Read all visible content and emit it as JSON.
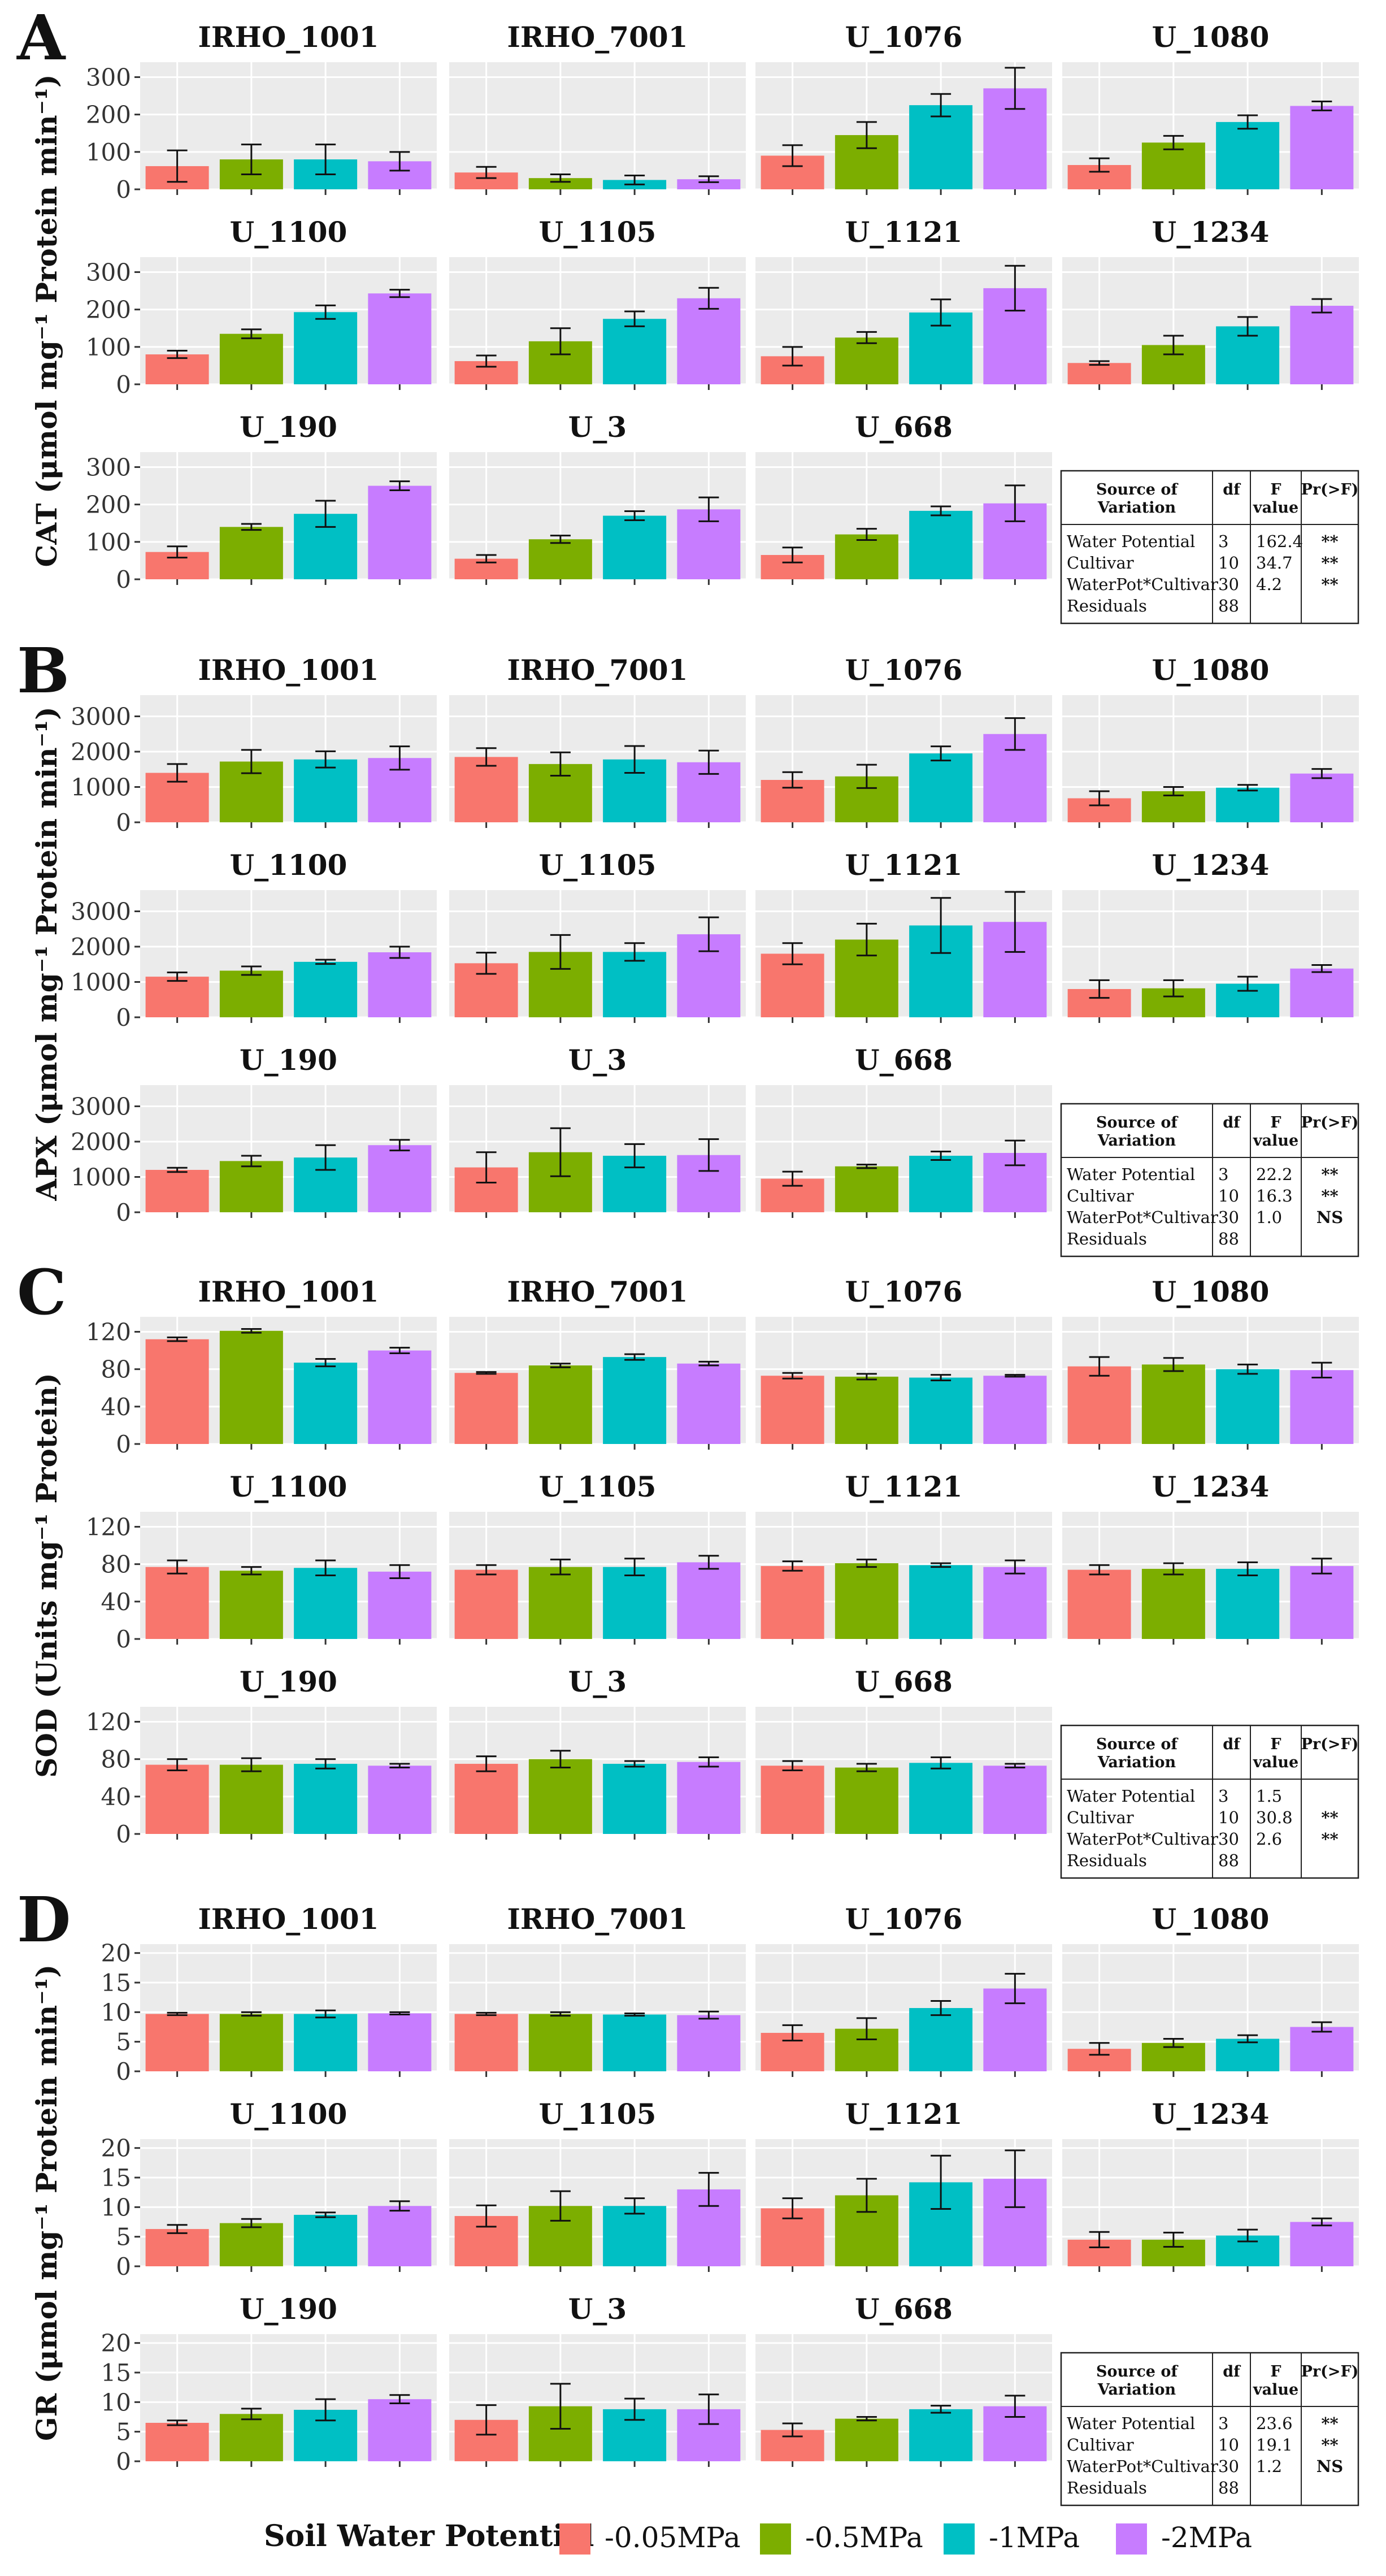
{
  "figure": {
    "legend": {
      "title": "Soil Water Potential",
      "items": [
        "-0.05MPa",
        "-0.5MPa",
        "-1MPa",
        "-2MPa"
      ],
      "colors": [
        "#f8766d",
        "#7cae00",
        "#00bfc4",
        "#c77cff"
      ]
    },
    "table_headers": [
      "Source of Variation",
      "df",
      "F value",
      "Pr(>F)"
    ]
  },
  "chart_data": [
    {
      "type": "bar",
      "panel_letter": "A",
      "ylabel": "CAT (μmol mg⁻¹ Protein min⁻¹)",
      "ylim": [
        0,
        340
      ],
      "yticks": [
        0,
        100,
        200,
        300
      ],
      "series_names": [
        "-0.05MPa",
        "-0.5MPa",
        "-1MPa",
        "-2MPa"
      ],
      "facets": [
        {
          "title": "IRHO_1001",
          "values": [
            62,
            80,
            80,
            75
          ],
          "errors": [
            42,
            40,
            40,
            25
          ]
        },
        {
          "title": "IRHO_7001",
          "values": [
            45,
            30,
            25,
            27
          ],
          "errors": [
            15,
            10,
            12,
            8
          ]
        },
        {
          "title": "U_1076",
          "values": [
            90,
            145,
            225,
            270
          ],
          "errors": [
            28,
            35,
            30,
            55
          ]
        },
        {
          "title": "U_1080",
          "values": [
            65,
            125,
            180,
            223
          ],
          "errors": [
            18,
            18,
            18,
            12
          ]
        },
        {
          "title": "U_1100",
          "values": [
            80,
            135,
            193,
            243
          ],
          "errors": [
            10,
            12,
            18,
            10
          ]
        },
        {
          "title": "U_1105",
          "values": [
            62,
            115,
            175,
            230
          ],
          "errors": [
            15,
            35,
            20,
            28
          ]
        },
        {
          "title": "U_1121",
          "values": [
            75,
            125,
            192,
            257
          ],
          "errors": [
            25,
            15,
            35,
            60
          ]
        },
        {
          "title": "U_1234",
          "values": [
            57,
            105,
            155,
            210
          ],
          "errors": [
            5,
            25,
            25,
            18
          ]
        },
        {
          "title": "U_190",
          "values": [
            73,
            140,
            175,
            250
          ],
          "errors": [
            15,
            8,
            35,
            12
          ]
        },
        {
          "title": "U_3",
          "values": [
            55,
            107,
            170,
            187
          ],
          "errors": [
            10,
            10,
            12,
            32
          ]
        },
        {
          "title": "U_668",
          "values": [
            65,
            120,
            183,
            203
          ],
          "errors": [
            20,
            15,
            12,
            48
          ]
        }
      ],
      "anova": [
        {
          "source": "Water Potential",
          "df": "3",
          "f": "162.4",
          "p": "**"
        },
        {
          "source": "Cultivar",
          "df": "10",
          "f": "34.7",
          "p": "**"
        },
        {
          "source": "WaterPot*Cultivar",
          "df": "30",
          "f": "4.2",
          "p": "**"
        },
        {
          "source": "Residuals",
          "df": "88",
          "f": "",
          "p": ""
        }
      ]
    },
    {
      "type": "bar",
      "panel_letter": "B",
      "ylabel": "APX (μmol mg⁻¹ Protein min⁻¹)",
      "ylim": [
        0,
        3600
      ],
      "yticks": [
        0,
        1000,
        2000,
        3000
      ],
      "series_names": [
        "-0.05MPa",
        "-0.5MPa",
        "-1MPa",
        "-2MPa"
      ],
      "facets": [
        {
          "title": "IRHO_1001",
          "values": [
            1400,
            1720,
            1780,
            1820
          ],
          "errors": [
            250,
            330,
            230,
            330
          ]
        },
        {
          "title": "IRHO_7001",
          "values": [
            1850,
            1650,
            1780,
            1700
          ],
          "errors": [
            250,
            330,
            380,
            330
          ]
        },
        {
          "title": "U_1076",
          "values": [
            1200,
            1300,
            1950,
            2500
          ],
          "errors": [
            220,
            330,
            200,
            450
          ]
        },
        {
          "title": "U_1080",
          "values": [
            680,
            880,
            980,
            1380
          ],
          "errors": [
            200,
            120,
            80,
            130
          ]
        },
        {
          "title": "U_1100",
          "values": [
            1150,
            1320,
            1570,
            1840
          ],
          "errors": [
            120,
            120,
            60,
            160
          ]
        },
        {
          "title": "U_1105",
          "values": [
            1530,
            1850,
            1850,
            2350
          ],
          "errors": [
            300,
            480,
            250,
            480
          ]
        },
        {
          "title": "U_1121",
          "values": [
            1800,
            2200,
            2600,
            2700
          ],
          "errors": [
            300,
            450,
            780,
            850
          ]
        },
        {
          "title": "U_1234",
          "values": [
            800,
            820,
            950,
            1380
          ],
          "errors": [
            250,
            230,
            200,
            100
          ]
        },
        {
          "title": "U_190",
          "values": [
            1200,
            1450,
            1550,
            1900
          ],
          "errors": [
            60,
            150,
            350,
            150
          ]
        },
        {
          "title": "U_3",
          "values": [
            1270,
            1700,
            1600,
            1620
          ],
          "errors": [
            430,
            680,
            330,
            450
          ]
        },
        {
          "title": "U_668",
          "values": [
            950,
            1300,
            1600,
            1680
          ],
          "errors": [
            200,
            50,
            120,
            350
          ]
        }
      ],
      "anova": [
        {
          "source": "Water Potential",
          "df": "3",
          "f": "22.2",
          "p": "**"
        },
        {
          "source": "Cultivar",
          "df": "10",
          "f": "16.3",
          "p": "**"
        },
        {
          "source": "WaterPot*Cultivar",
          "df": "30",
          "f": "1.0",
          "p": "NS"
        },
        {
          "source": "Residuals",
          "df": "88",
          "f": "",
          "p": ""
        }
      ]
    },
    {
      "type": "bar",
      "panel_letter": "C",
      "ylabel": "SOD (Units mg⁻¹ Protein)",
      "ylim": [
        0,
        136
      ],
      "yticks": [
        0,
        40,
        80,
        120
      ],
      "series_names": [
        "-0.05MPa",
        "-0.5MPa",
        "-1MPa",
        "-2MPa"
      ],
      "facets": [
        {
          "title": "IRHO_1001",
          "values": [
            112,
            121,
            87,
            100
          ],
          "errors": [
            2,
            2,
            4,
            3
          ]
        },
        {
          "title": "IRHO_7001",
          "values": [
            76,
            84,
            93,
            86
          ],
          "errors": [
            1,
            2,
            3,
            2
          ]
        },
        {
          "title": "U_1076",
          "values": [
            73,
            72,
            71,
            73
          ],
          "errors": [
            3,
            3,
            3,
            1
          ]
        },
        {
          "title": "U_1080",
          "values": [
            83,
            85,
            80,
            79
          ],
          "errors": [
            10,
            7,
            5,
            8
          ]
        },
        {
          "title": "U_1100",
          "values": [
            77,
            73,
            76,
            72
          ],
          "errors": [
            7,
            4,
            8,
            7
          ]
        },
        {
          "title": "U_1105",
          "values": [
            74,
            77,
            77,
            82
          ],
          "errors": [
            5,
            8,
            9,
            7
          ]
        },
        {
          "title": "U_1121",
          "values": [
            78,
            81,
            79,
            77
          ],
          "errors": [
            5,
            4,
            2,
            7
          ]
        },
        {
          "title": "U_1234",
          "values": [
            74,
            75,
            75,
            78
          ],
          "errors": [
            5,
            6,
            7,
            8
          ]
        },
        {
          "title": "U_190",
          "values": [
            74,
            74,
            75,
            73
          ],
          "errors": [
            6,
            7,
            5,
            2
          ]
        },
        {
          "title": "U_3",
          "values": [
            75,
            80,
            75,
            77
          ],
          "errors": [
            8,
            9,
            3,
            5
          ]
        },
        {
          "title": "U_668",
          "values": [
            73,
            71,
            76,
            73
          ],
          "errors": [
            5,
            4,
            6,
            2
          ]
        }
      ],
      "anova": [
        {
          "source": "Water Potential",
          "df": "3",
          "f": "1.5",
          "p": ""
        },
        {
          "source": "Cultivar",
          "df": "10",
          "f": "30.8",
          "p": "**"
        },
        {
          "source": "WaterPot*Cultivar",
          "df": "30",
          "f": "2.6",
          "p": "**"
        },
        {
          "source": "Residuals",
          "df": "88",
          "f": "",
          "p": ""
        }
      ]
    },
    {
      "type": "bar",
      "panel_letter": "D",
      "ylabel": "GR (μmol mg⁻¹ Protein min⁻¹)",
      "ylim": [
        0,
        21.5
      ],
      "yticks": [
        0,
        5,
        10,
        15,
        20
      ],
      "series_names": [
        "-0.05MPa",
        "-0.5MPa",
        "-1MPa",
        "-2MPa"
      ],
      "facets": [
        {
          "title": "IRHO_1001",
          "values": [
            9.7,
            9.7,
            9.7,
            9.8
          ],
          "errors": [
            0.2,
            0.3,
            0.6,
            0.2
          ]
        },
        {
          "title": "IRHO_7001",
          "values": [
            9.7,
            9.7,
            9.6,
            9.5
          ],
          "errors": [
            0.2,
            0.3,
            0.2,
            0.6
          ]
        },
        {
          "title": "U_1076",
          "values": [
            6.5,
            7.2,
            10.7,
            14
          ],
          "errors": [
            1.3,
            1.8,
            1.2,
            2.5
          ]
        },
        {
          "title": "U_1080",
          "values": [
            3.8,
            4.8,
            5.5,
            7.5
          ],
          "errors": [
            1,
            0.7,
            0.6,
            0.8
          ]
        },
        {
          "title": "U_1100",
          "values": [
            6.3,
            7.3,
            8.7,
            10.2
          ],
          "errors": [
            0.7,
            0.7,
            0.4,
            0.8
          ]
        },
        {
          "title": "U_1105",
          "values": [
            8.5,
            10.2,
            10.2,
            13
          ],
          "errors": [
            1.8,
            2.5,
            1.3,
            2.8
          ]
        },
        {
          "title": "U_1121",
          "values": [
            9.8,
            12,
            14.2,
            14.8
          ],
          "errors": [
            1.7,
            2.8,
            4.5,
            4.8
          ]
        },
        {
          "title": "U_1234",
          "values": [
            4.5,
            4.5,
            5.2,
            7.5
          ],
          "errors": [
            1.3,
            1.2,
            1,
            0.6
          ]
        },
        {
          "title": "U_190",
          "values": [
            6.5,
            8,
            8.7,
            10.5
          ],
          "errors": [
            0.4,
            0.9,
            1.8,
            0.7
          ]
        },
        {
          "title": "U_3",
          "values": [
            7,
            9.3,
            8.8,
            8.8
          ],
          "errors": [
            2.5,
            3.8,
            1.8,
            2.5
          ]
        },
        {
          "title": "U_668",
          "values": [
            5.3,
            7.2,
            8.8,
            9.3
          ],
          "errors": [
            1.1,
            0.3,
            0.6,
            1.8
          ]
        }
      ],
      "anova": [
        {
          "source": "Water Potential",
          "df": "3",
          "f": "23.6",
          "p": "**"
        },
        {
          "source": "Cultivar",
          "df": "10",
          "f": "19.1",
          "p": "**"
        },
        {
          "source": "WaterPot*Cultivar",
          "df": "30",
          "f": "1.2",
          "p": "NS"
        },
        {
          "source": "Residuals",
          "df": "88",
          "f": "",
          "p": ""
        }
      ]
    }
  ]
}
